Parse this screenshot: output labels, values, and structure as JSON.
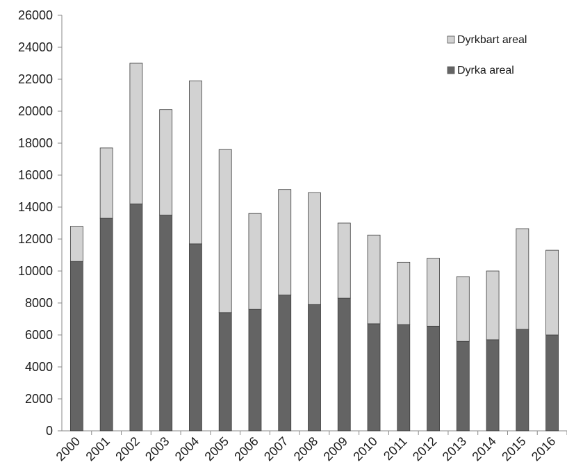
{
  "chart_data": {
    "type": "bar",
    "stacked": true,
    "categories": [
      "2000",
      "2001",
      "2002",
      "2003",
      "2004",
      "2005",
      "2006",
      "2007",
      "2008",
      "2009",
      "2010",
      "2011",
      "2012",
      "2013",
      "2014",
      "2015",
      "2016"
    ],
    "series": [
      {
        "name": "Dyrka areal",
        "color": "#646464",
        "values": [
          10600,
          13300,
          14200,
          13500,
          11700,
          7400,
          7600,
          8500,
          7900,
          8300,
          6700,
          6650,
          6550,
          5600,
          5700,
          6350,
          6000
        ]
      },
      {
        "name": "Dyrkbart areal",
        "color": "#d2d2d2",
        "values": [
          2200,
          4400,
          8800,
          6600,
          10200,
          10200,
          6000,
          6600,
          7000,
          4700,
          5550,
          3900,
          4250,
          4050,
          4300,
          6300,
          5300
        ]
      }
    ],
    "yticks": [
      "0",
      "2000",
      "4000",
      "6000",
      "8000",
      "10000",
      "12000",
      "14000",
      "16000",
      "18000",
      "20000",
      "22000",
      "24000",
      "26000"
    ],
    "ylim": [
      0,
      26000
    ],
    "title": "",
    "xlabel": "",
    "ylabel": "",
    "legend_position": "top-right",
    "legend": [
      "Dyrkbart areal",
      "Dyrka areal"
    ],
    "grid": false
  }
}
